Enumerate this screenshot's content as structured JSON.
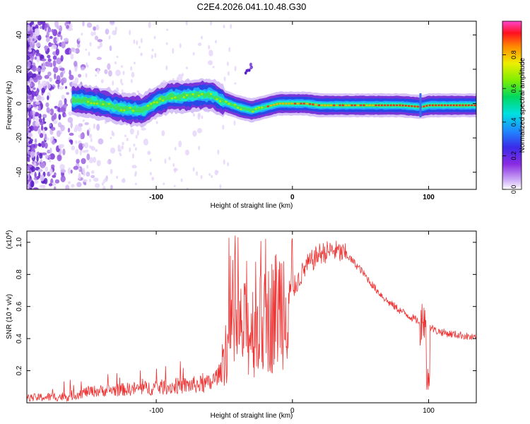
{
  "title": "C2E4.2026.041.10.48.G30",
  "chart_data": [
    {
      "type": "heatmap",
      "xlabel": "Height of straight line (km)",
      "ylabel": "Frequency (Hz)",
      "xlim": [
        -195,
        135
      ],
      "ylim": [
        -50,
        48
      ],
      "x_ticks": [
        -100,
        0,
        100
      ],
      "y_ticks": [
        -40,
        -20,
        0,
        20,
        40
      ],
      "colorbar": {
        "label": "Normalized spectral amplitude",
        "range": [
          0,
          1
        ],
        "ticks": [
          "0.0",
          "0.2",
          "0.4",
          "0.6",
          "0.8"
        ]
      },
      "ridge_centerline": [
        [
          -155,
          2
        ],
        [
          -140,
          0
        ],
        [
          -125,
          -3
        ],
        [
          -110,
          -4
        ],
        [
          -100,
          1
        ],
        [
          -90,
          4
        ],
        [
          -80,
          4
        ],
        [
          -70,
          5
        ],
        [
          -60,
          5
        ],
        [
          -50,
          1
        ],
        [
          -40,
          -2
        ],
        [
          -30,
          -4
        ],
        [
          -20,
          -2
        ],
        [
          -10,
          0
        ],
        [
          0,
          0
        ],
        [
          10,
          0
        ],
        [
          20,
          -1
        ],
        [
          40,
          -1
        ],
        [
          60,
          -1
        ],
        [
          80,
          -1
        ],
        [
          95,
          -2
        ],
        [
          100,
          -1
        ],
        [
          120,
          -1
        ],
        [
          135,
          -1
        ]
      ],
      "noise_blob": {
        "x": [
          -35,
          -30
        ],
        "y": [
          17,
          23
        ]
      }
    },
    {
      "type": "line",
      "xlabel": "Height of straight line (km)",
      "ylabel": "SNR (10 * v/v)",
      "y_multiplier": "(x10",
      "y_multiplier_exp": "4",
      "y_multiplier_close": ")",
      "xlim": [
        -195,
        135
      ],
      "ylim": [
        0,
        1.07
      ],
      "x_ticks": [
        -100,
        0,
        100
      ],
      "y_ticks": [
        "0.2",
        "0.4",
        "0.6",
        "0.8",
        "1.0"
      ],
      "color": "#ee3333",
      "envelope": [
        [
          -195,
          0.03
        ],
        [
          -165,
          0.04
        ],
        [
          -150,
          0.07
        ],
        [
          -130,
          0.08
        ],
        [
          -110,
          0.09
        ],
        [
          -90,
          0.1
        ],
        [
          -75,
          0.11
        ],
        [
          -60,
          0.12
        ],
        [
          -52,
          0.2
        ],
        [
          -50,
          0.3
        ],
        [
          -45,
          0.35
        ],
        [
          -40,
          0.4
        ],
        [
          -30,
          0.42
        ],
        [
          -20,
          0.45
        ],
        [
          -10,
          0.55
        ],
        [
          -5,
          0.6
        ],
        [
          0,
          0.7
        ],
        [
          10,
          0.85
        ],
        [
          20,
          0.93
        ],
        [
          30,
          0.95
        ],
        [
          40,
          0.92
        ],
        [
          50,
          0.83
        ],
        [
          60,
          0.72
        ],
        [
          70,
          0.63
        ],
        [
          80,
          0.57
        ],
        [
          90,
          0.52
        ],
        [
          95,
          0.5
        ],
        [
          100,
          0.48
        ],
        [
          105,
          0.45
        ],
        [
          115,
          0.43
        ],
        [
          125,
          0.42
        ],
        [
          135,
          0.4
        ]
      ]
    }
  ]
}
